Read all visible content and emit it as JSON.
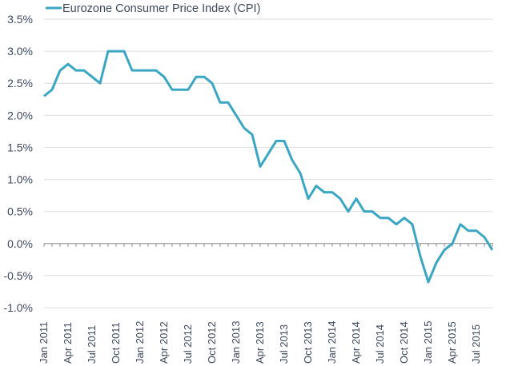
{
  "chart_data": {
    "type": "line",
    "title": "",
    "xlabel": "",
    "ylabel": "",
    "ylim": [
      -1.0,
      3.5
    ],
    "grid": true,
    "legend_position": "top-left",
    "y_ticks": [
      3.5,
      3.0,
      2.5,
      2.0,
      1.5,
      1.0,
      0.5,
      0.0,
      -0.5,
      -1.0
    ],
    "y_tick_labels": [
      "3.5%",
      "3.0%",
      "2.5%",
      "2.0%",
      "1.5%",
      "1.0%",
      "0.5%",
      "0.0%",
      "-0.5%",
      "-1.0%"
    ],
    "x_tick_labels": [
      "Jan 2011",
      "Apr 2011",
      "Jul 2011",
      "Oct 2011",
      "Jan 2012",
      "Apr 2012",
      "Jul 2012",
      "Oct 2012",
      "Jan 2013",
      "Apr 2013",
      "Jul 2013",
      "Oct 2013",
      "Jan 2014",
      "Apr 2014",
      "Jul 2014",
      "Oct 2014",
      "Jan 2015",
      "Apr 2015",
      "Jul 2015"
    ],
    "x_label_every_n_months": 3,
    "x": [
      "Jan 2011",
      "Feb 2011",
      "Mar 2011",
      "Apr 2011",
      "May 2011",
      "Jun 2011",
      "Jul 2011",
      "Aug 2011",
      "Sep 2011",
      "Oct 2011",
      "Nov 2011",
      "Dec 2011",
      "Jan 2012",
      "Feb 2012",
      "Mar 2012",
      "Apr 2012",
      "May 2012",
      "Jun 2012",
      "Jul 2012",
      "Aug 2012",
      "Sep 2012",
      "Oct 2012",
      "Nov 2012",
      "Dec 2012",
      "Jan 2013",
      "Feb 2013",
      "Mar 2013",
      "Apr 2013",
      "May 2013",
      "Jun 2013",
      "Jul 2013",
      "Aug 2013",
      "Sep 2013",
      "Oct 2013",
      "Nov 2013",
      "Dec 2013",
      "Jan 2014",
      "Feb 2014",
      "Mar 2014",
      "Apr 2014",
      "May 2014",
      "Jun 2014",
      "Jul 2014",
      "Aug 2014",
      "Sep 2014",
      "Oct 2014",
      "Nov 2014",
      "Dec 2014",
      "Jan 2015",
      "Feb 2015",
      "Mar 2015",
      "Apr 2015",
      "May 2015",
      "Jun 2015",
      "Jul 2015",
      "Aug 2015",
      "Sep 2015"
    ],
    "series": [
      {
        "name": "Eurozone Consumer Price Index (CPI)",
        "color": "#3aa6c4",
        "unit": "%",
        "values": [
          2.3,
          2.4,
          2.7,
          2.8,
          2.7,
          2.7,
          2.6,
          2.5,
          3.0,
          3.0,
          3.0,
          2.7,
          2.7,
          2.7,
          2.7,
          2.6,
          2.4,
          2.4,
          2.4,
          2.6,
          2.6,
          2.5,
          2.2,
          2.2,
          2.0,
          1.8,
          1.7,
          1.2,
          1.4,
          1.6,
          1.6,
          1.3,
          1.1,
          0.7,
          0.9,
          0.8,
          0.8,
          0.7,
          0.5,
          0.7,
          0.5,
          0.5,
          0.4,
          0.4,
          0.3,
          0.4,
          0.3,
          -0.2,
          -0.6,
          -0.3,
          -0.1,
          0.0,
          0.3,
          0.2,
          0.2,
          0.1,
          -0.1
        ]
      }
    ]
  },
  "colors": {
    "line": "#3aa6c4",
    "text": "#3d4a5c",
    "grid": "#e3e3e3",
    "axis": "#8c8c8c"
  }
}
